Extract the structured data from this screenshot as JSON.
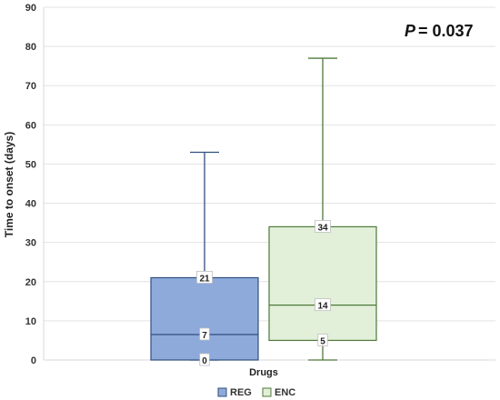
{
  "chart_data": {
    "type": "boxplot",
    "xlabel": "Drugs",
    "ylabel": "Time to onset (days)",
    "ylim": [
      0,
      90
    ],
    "yticks": [
      0,
      10,
      20,
      30,
      40,
      50,
      60,
      70,
      80,
      90
    ],
    "grid": true,
    "legend_position": "bottom",
    "annotation": {
      "p_label": "P",
      "p_text": "= 0.037"
    },
    "series": [
      {
        "name": "REG",
        "color": "#8eaadb",
        "edge_color": "#2f4f7f",
        "min": 0,
        "q1": 0,
        "median": 6.5,
        "q3": 21,
        "max": 53,
        "labels": {
          "q1": "0",
          "median": "7",
          "q3": "21"
        }
      },
      {
        "name": "ENC",
        "color": "#e2efd9",
        "edge_color": "#4e7a3a",
        "min": 0,
        "q1": 5,
        "median": 14,
        "q3": 34,
        "max": 77,
        "labels": {
          "q1": "5",
          "median": "14",
          "q3": "34"
        }
      }
    ]
  }
}
